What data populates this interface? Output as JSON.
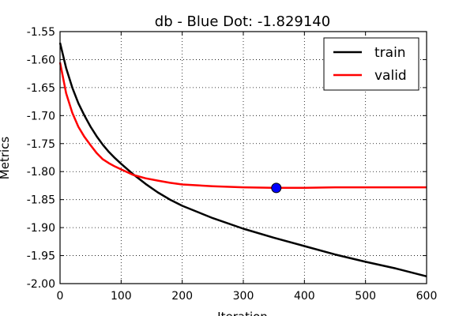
{
  "chart_data": {
    "type": "line",
    "title": "db - Blue Dot: -1.829140",
    "xlabel": "Iteration",
    "ylabel": "Metrics",
    "xlim": [
      0,
      600
    ],
    "ylim": [
      -2.0,
      -1.55
    ],
    "xticks": [
      "0",
      "100",
      "200",
      "300",
      "400",
      "500",
      "600"
    ],
    "yticks": [
      "-1.55",
      "-1.60",
      "-1.65",
      "-1.70",
      "-1.75",
      "-1.80",
      "-1.85",
      "-1.90",
      "-1.95",
      "-2.00"
    ],
    "grid": true,
    "legend_position": "top-right",
    "series": [
      {
        "name": "train",
        "color": "#000000",
        "x": [
          0,
          10,
          20,
          30,
          40,
          50,
          60,
          70,
          80,
          90,
          100,
          120,
          140,
          160,
          180,
          200,
          250,
          300,
          350,
          400,
          450,
          500,
          550,
          600
        ],
        "y": [
          -1.57,
          -1.615,
          -1.65,
          -1.678,
          -1.7,
          -1.72,
          -1.737,
          -1.752,
          -1.765,
          -1.776,
          -1.786,
          -1.805,
          -1.822,
          -1.837,
          -1.85,
          -1.861,
          -1.883,
          -1.902,
          -1.918,
          -1.933,
          -1.948,
          -1.961,
          -1.973,
          -1.987
        ]
      },
      {
        "name": "valid",
        "color": "#ff0000",
        "x": [
          0,
          10,
          20,
          30,
          40,
          50,
          60,
          70,
          80,
          90,
          100,
          120,
          140,
          160,
          180,
          200,
          250,
          300,
          350,
          400,
          450,
          500,
          550,
          600
        ],
        "y": [
          -1.605,
          -1.66,
          -1.695,
          -1.72,
          -1.738,
          -1.753,
          -1.767,
          -1.778,
          -1.785,
          -1.791,
          -1.796,
          -1.806,
          -1.812,
          -1.816,
          -1.82,
          -1.823,
          -1.826,
          -1.828,
          -1.829,
          -1.829,
          -1.828,
          -1.828,
          -1.828,
          -1.828
        ]
      }
    ],
    "marker": {
      "label": "Blue Dot",
      "x": 354,
      "y": -1.82914,
      "color": "#0000ff"
    }
  }
}
